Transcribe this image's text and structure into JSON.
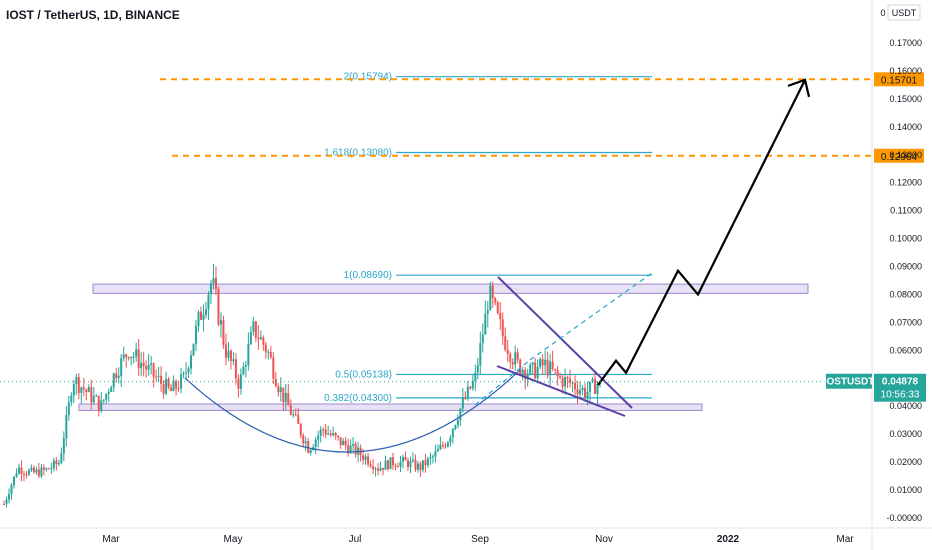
{
  "header": {
    "title": "IOST / TetherUS, 1D, BINANCE"
  },
  "price_axis": {
    "unit_label": "USDT",
    "currency_badge": "0"
  },
  "colors": {
    "up": "#26a69a",
    "down": "#ef5350",
    "fib": "#2aa7c9",
    "orange": "#ff9800",
    "purple": "#5b3fa8",
    "curve": "#2a5fb0",
    "zone": "#d8cdf0",
    "zone_border": "#9c8ccc"
  },
  "chart_data": {
    "type": "candlestick",
    "symbol": "IOSTUSDT",
    "exchange": "BINANCE",
    "interval": "1D",
    "ylim": [
      -0.0004,
      0.18
    ],
    "y_ticks": [
      "0.17000",
      "0.16000",
      "0.15000",
      "0.14000",
      "0.13000",
      "0.12000",
      "0.11000",
      "0.10000",
      "0.09000",
      "0.08000",
      "0.07000",
      "0.06000",
      "0.05000",
      "0.04000",
      "0.03000",
      "0.02000",
      "0.01000",
      "-0.00000"
    ],
    "x_ticks": [
      "Mar",
      "May",
      "Jul",
      "Sep",
      "Nov",
      "2022",
      "Mar"
    ],
    "last_price": {
      "value": "0.04878",
      "countdown": "10:56:33",
      "label": "IOSTUSDT"
    },
    "fib_levels": [
      {
        "label": "2(0.15794)",
        "value": 0.15794
      },
      {
        "label": "1.618(0.13080)",
        "value": 0.1308
      },
      {
        "label": "1(0.08690)",
        "value": 0.0869
      },
      {
        "label": "0.5(0.05138)",
        "value": 0.05138
      },
      {
        "label": "0.382(0.04300)",
        "value": 0.043
      }
    ],
    "target_lines": [
      {
        "value": 0.15701,
        "label": "0.15701"
      },
      {
        "value": 0.12964,
        "label": "0.12964"
      }
    ],
    "resistance_zone": [
      0.0804,
      0.0837
    ],
    "support_zone": [
      0.0385,
      0.0408
    ],
    "price_path_close": [
      0.005,
      0.018,
      0.016,
      0.017,
      0.02,
      0.05,
      0.045,
      0.04,
      0.052,
      0.06,
      0.055,
      0.05,
      0.045,
      0.05,
      0.07,
      0.085,
      0.06,
      0.048,
      0.068,
      0.06,
      0.045,
      0.035,
      0.025,
      0.032,
      0.028,
      0.025,
      0.022,
      0.018,
      0.02,
      0.02,
      0.018,
      0.022,
      0.028,
      0.04,
      0.05,
      0.08,
      0.065,
      0.055,
      0.052,
      0.055,
      0.05,
      0.048,
      0.045,
      0.04878
    ],
    "projection_path": [
      0.0476,
      0.0563,
      0.052,
      0.0885,
      0.08,
      0.1568
    ]
  }
}
